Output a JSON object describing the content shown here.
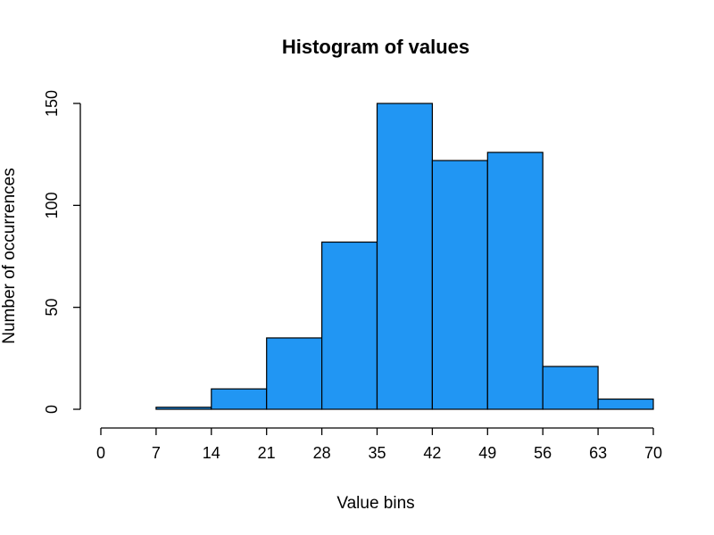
{
  "chart_data": {
    "type": "bar",
    "title": "Histogram of values",
    "xlabel": "Value bins",
    "ylabel": "Number of occurrences",
    "bins": [
      {
        "start": 0,
        "end": 7,
        "count": 0
      },
      {
        "start": 7,
        "end": 14,
        "count": 1
      },
      {
        "start": 14,
        "end": 21,
        "count": 10
      },
      {
        "start": 21,
        "end": 28,
        "count": 35
      },
      {
        "start": 28,
        "end": 35,
        "count": 82
      },
      {
        "start": 35,
        "end": 42,
        "count": 150
      },
      {
        "start": 42,
        "end": 49,
        "count": 122
      },
      {
        "start": 49,
        "end": 56,
        "count": 126
      },
      {
        "start": 56,
        "end": 63,
        "count": 21
      },
      {
        "start": 63,
        "end": 70,
        "count": 5
      }
    ],
    "xticks": [
      0,
      7,
      14,
      21,
      28,
      35,
      42,
      49,
      56,
      63,
      70
    ],
    "yticks": [
      0,
      50,
      100,
      150
    ],
    "xlim": [
      0,
      70
    ],
    "ylim": [
      0,
      150
    ],
    "bar_color": "#2196F3",
    "grid": false
  }
}
